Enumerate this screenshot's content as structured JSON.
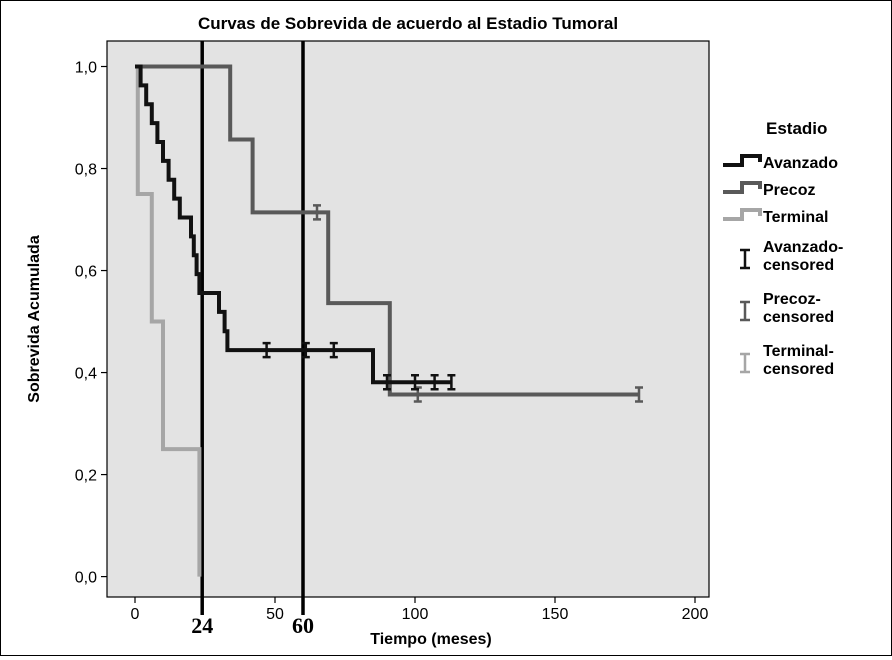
{
  "chart_data": {
    "type": "line",
    "subtype": "kaplan-meier step",
    "title": "Curvas de Sobrevida de acuerdo al Estadio Tumoral",
    "xlabel": "Tiempo (meses)",
    "ylabel": "Sobrevida Acumulada",
    "xlim": [
      -10,
      205
    ],
    "ylim": [
      -0.04,
      1.05
    ],
    "xticks": [
      0,
      50,
      100,
      150,
      200
    ],
    "xtick_labels": [
      "0",
      "50",
      "100",
      "150",
      "200"
    ],
    "yticks": [
      0,
      0.2,
      0.4,
      0.6,
      0.8,
      1.0
    ],
    "ytick_labels": [
      "0,0",
      "0,2",
      "0,4",
      "0,6",
      "0,8",
      "1,0"
    ],
    "grid": false,
    "plot_background": "#e3e3e3",
    "reference_lines": [
      {
        "x": 24,
        "label": "24"
      },
      {
        "x": 60,
        "label": "60"
      }
    ],
    "legend_title": "Estadio",
    "legend_position": "right",
    "series": [
      {
        "name": "Avanzado",
        "color": "#111111",
        "steps": [
          [
            0,
            1.0
          ],
          [
            2,
            0.963
          ],
          [
            4,
            0.926
          ],
          [
            6,
            0.889
          ],
          [
            8,
            0.852
          ],
          [
            10,
            0.815
          ],
          [
            12,
            0.778
          ],
          [
            14,
            0.741
          ],
          [
            16,
            0.704
          ],
          [
            20,
            0.667
          ],
          [
            21,
            0.63
          ],
          [
            22,
            0.593
          ],
          [
            23,
            0.556
          ],
          [
            30,
            0.519
          ],
          [
            32,
            0.481
          ],
          [
            33,
            0.444
          ],
          [
            85,
            0.444
          ],
          [
            85,
            0.381
          ],
          [
            113,
            0.381
          ]
        ],
        "censored": [
          [
            47,
            0.444
          ],
          [
            61,
            0.444
          ],
          [
            71,
            0.444
          ],
          [
            90,
            0.381
          ],
          [
            100,
            0.381
          ],
          [
            107,
            0.381
          ],
          [
            113,
            0.381
          ]
        ]
      },
      {
        "name": "Precoz",
        "color": "#595959",
        "steps": [
          [
            0,
            1.0
          ],
          [
            34,
            1.0
          ],
          [
            34,
            0.857
          ],
          [
            42,
            0.857
          ],
          [
            42,
            0.714
          ],
          [
            69,
            0.714
          ],
          [
            69,
            0.536
          ],
          [
            91,
            0.536
          ],
          [
            91,
            0.357
          ],
          [
            180,
            0.357
          ]
        ],
        "censored": [
          [
            65,
            0.714
          ],
          [
            101,
            0.357
          ],
          [
            180,
            0.357
          ]
        ]
      },
      {
        "name": "Terminal",
        "color": "#a6a6a6",
        "steps": [
          [
            0,
            1.0
          ],
          [
            1,
            1.0
          ],
          [
            1,
            0.75
          ],
          [
            6,
            0.75
          ],
          [
            6,
            0.5
          ],
          [
            10,
            0.5
          ],
          [
            10,
            0.25
          ],
          [
            23,
            0.25
          ],
          [
            23,
            0.0
          ]
        ],
        "censored": []
      }
    ],
    "legend_censored": [
      {
        "name": "Avanzado-censored",
        "color": "#111111"
      },
      {
        "name": "Precoz-censored",
        "color": "#595959"
      },
      {
        "name": "Terminal-censored",
        "color": "#a6a6a6"
      }
    ]
  }
}
